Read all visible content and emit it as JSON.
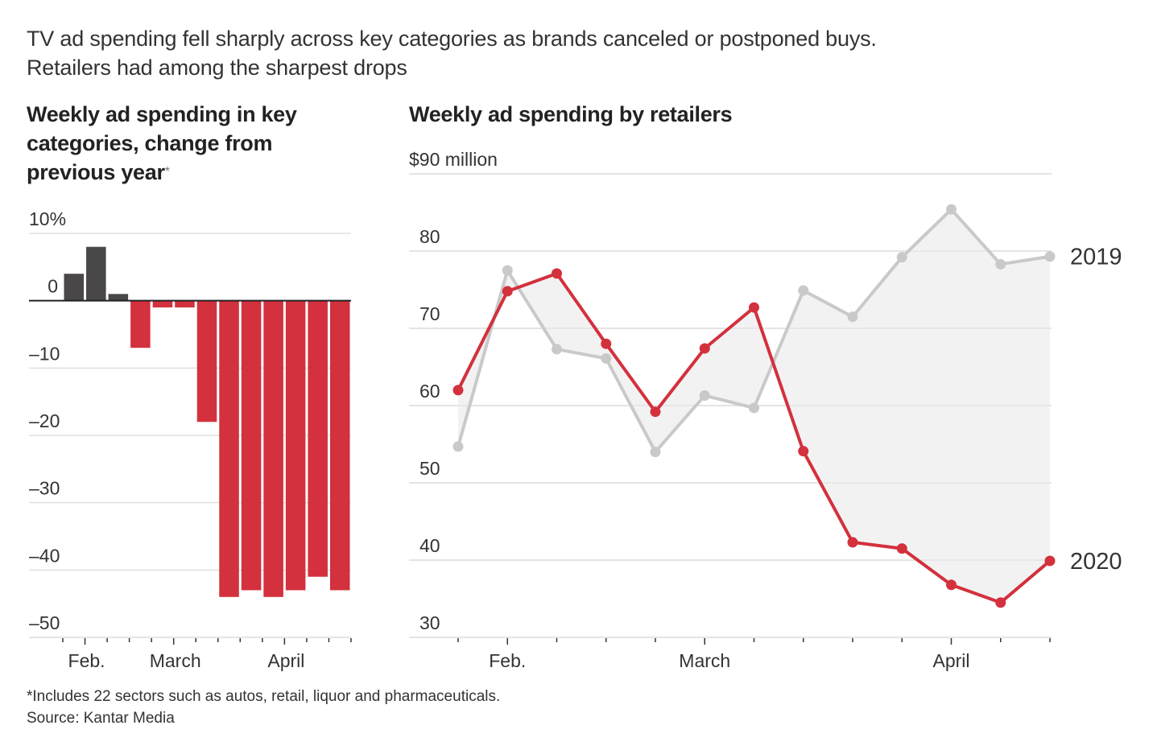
{
  "headline": {
    "line1": "TV ad spending fell sharply across key categories as brands canceled or postponed buys.",
    "line2": "Retailers had among the sharpest drops"
  },
  "footnote": {
    "note": "*Includes 22 sectors such as autos, retail, liquor and pharmaceuticals.",
    "source": "Source: Kantar Media"
  },
  "colors": {
    "negative_red": "#d3313d",
    "positive_dark": "#4a4748",
    "line_2020": "#d3313d",
    "line_2019": "#c9c9c9",
    "gap_fill": "#f3f2f3",
    "gridline": "#e0e0e0",
    "axis": "#222222"
  },
  "chart_data": [
    {
      "type": "bar",
      "title": "Weekly ad spending in key categories, change from previous year",
      "title_footnote_marker": "*",
      "xlabel": "",
      "ylabel": "",
      "ylim": [
        -50,
        10
      ],
      "yticks": [
        10,
        0,
        -10,
        -20,
        -30,
        -40,
        -50
      ],
      "ytick_labels": [
        "10%",
        "0",
        "–10",
        "–20",
        "–30",
        "–40",
        "–50"
      ],
      "x_month_labels": [
        {
          "label": "Feb.",
          "tick_index": 1
        },
        {
          "label": "March",
          "tick_index": 5
        },
        {
          "label": "April",
          "tick_index": 10
        }
      ],
      "tick_count": 14,
      "values": [
        4,
        8,
        1,
        -7,
        -1,
        -1,
        -18,
        -44,
        -43,
        -44,
        -43,
        -41,
        -43
      ],
      "grid": true,
      "legend": "none"
    },
    {
      "type": "line",
      "title": "Weekly ad spending by retailers",
      "ylabel": "$ million",
      "ylim": [
        30,
        90
      ],
      "yticks": [
        90,
        80,
        70,
        60,
        50,
        40,
        30
      ],
      "ytick_labels": [
        "$90 million",
        "80",
        "70",
        "60",
        "50",
        "40",
        "30"
      ],
      "x_month_labels": [
        {
          "label": "Feb.",
          "index": 1
        },
        {
          "label": "March",
          "index": 5
        },
        {
          "label": "April",
          "index": 10
        }
      ],
      "series": [
        {
          "name": "2019",
          "values": [
            54.7,
            77.5,
            67.3,
            66.1,
            54.0,
            61.3,
            59.7,
            74.9,
            71.5,
            79.2,
            85.4,
            78.3,
            79.3
          ]
        },
        {
          "name": "2020",
          "values": [
            62.0,
            74.8,
            77.1,
            68.0,
            59.2,
            67.4,
            72.7,
            54.1,
            42.3,
            41.5,
            36.8,
            34.5,
            39.9
          ]
        }
      ],
      "shaded_gap_between_series": true,
      "grid": true,
      "legend": "direct labels at right end of lines"
    }
  ]
}
